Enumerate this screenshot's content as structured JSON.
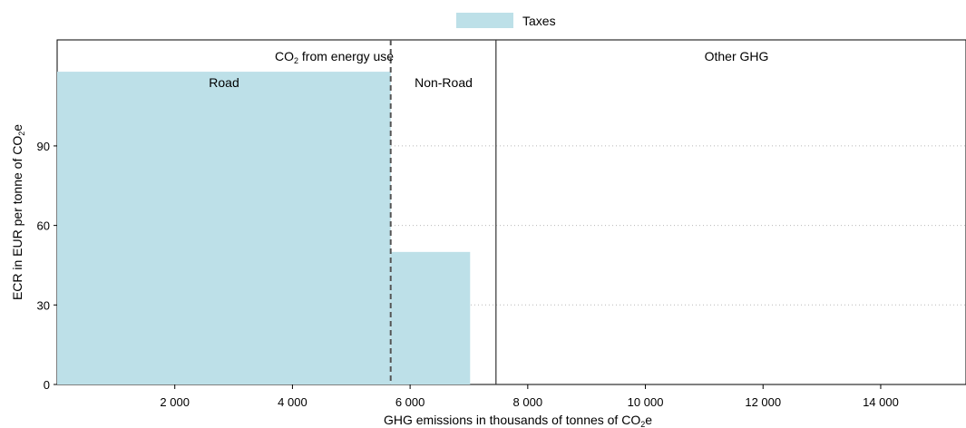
{
  "legend": {
    "label": "Taxes",
    "color": "#bde0e8",
    "placement": "top-center"
  },
  "axes": {
    "xlabel_before": "GHG emissions in thousands of tonnes of CO",
    "xlabel_sub": "2",
    "xlabel_after": "e",
    "ylabel_before": "ECR in EUR per tonne of CO",
    "ylabel_sub": "2",
    "ylabel_after": "e"
  },
  "regions": {
    "co2_before": "CO",
    "co2_sub": "2",
    "co2_after": " from energy use",
    "other": "Other GHG",
    "road": "Road",
    "non_road": "Non-Road"
  },
  "chart_data": {
    "type": "bar",
    "subtype": "variable-width step chart",
    "series": [
      {
        "name": "Taxes",
        "color": "#bde0e8",
        "segments": [
          {
            "category": "Road",
            "x_start": 0,
            "x_end": 5670,
            "value": 118
          },
          {
            "category": "Non-Road",
            "x_start": 5670,
            "x_end": 7020,
            "value": 50
          },
          {
            "category": "Other GHG",
            "x_start": 7460,
            "x_end": 15450,
            "value": 0
          }
        ]
      }
    ],
    "dividers": [
      {
        "x": 5670,
        "style": "dashed"
      },
      {
        "x": 7460,
        "style": "solid"
      }
    ],
    "xlim": [
      0,
      15450
    ],
    "ylim": [
      0,
      130
    ],
    "x_ticks": [
      2000,
      4000,
      6000,
      8000,
      10000,
      12000,
      14000
    ],
    "x_tick_labels": [
      "2 000",
      "4 000",
      "6 000",
      "8 000",
      "10 000",
      "12 000",
      "14 000"
    ],
    "y_ticks": [
      0,
      30,
      60,
      90
    ],
    "y_tick_labels": [
      "0",
      "30",
      "60",
      "90"
    ],
    "grid": "horizontal dotted"
  }
}
